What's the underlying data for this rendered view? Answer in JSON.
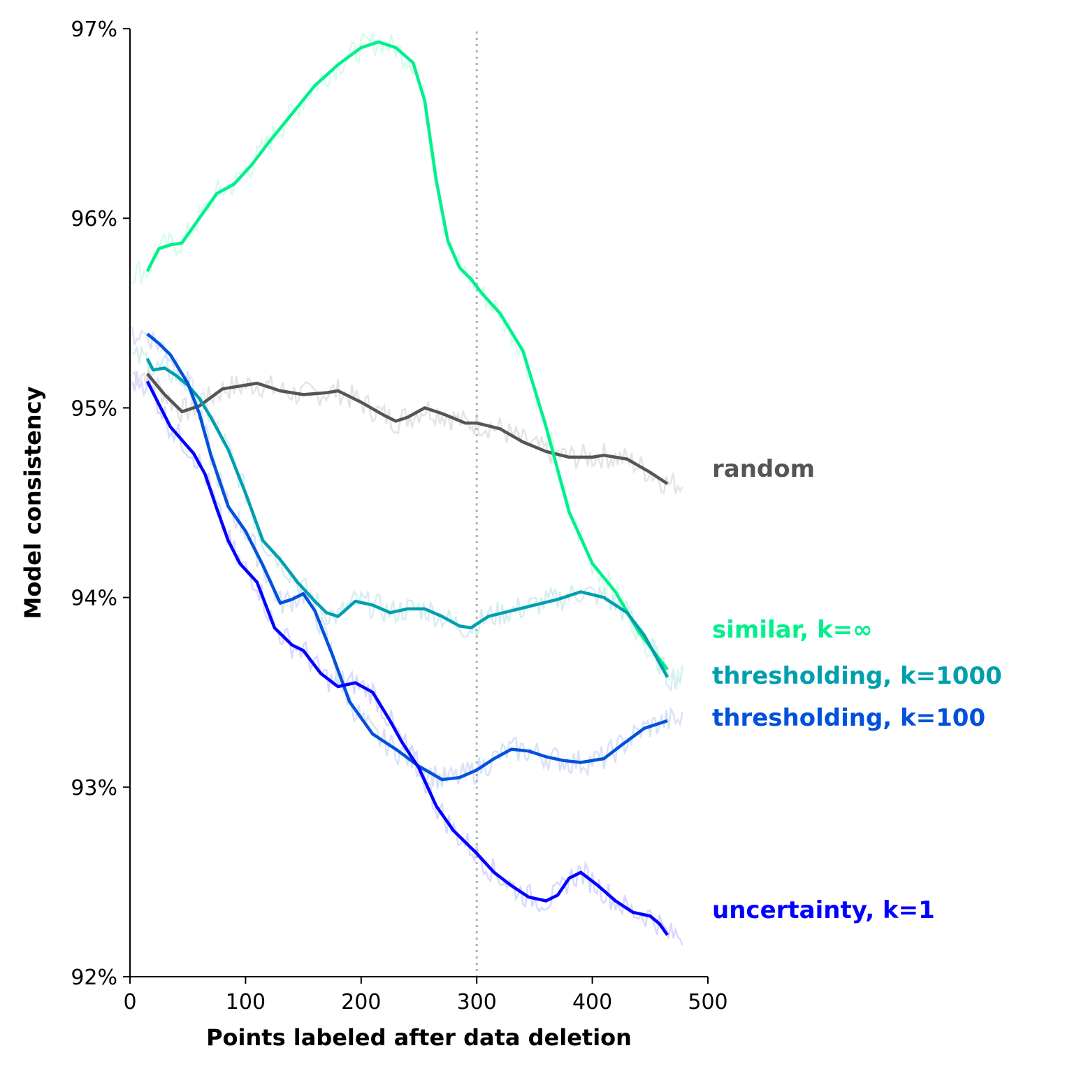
{
  "chart_data": {
    "type": "line",
    "title": "",
    "xlabel": "Points labeled after data deletion",
    "ylabel": "Model consistency",
    "xlim": [
      0,
      500
    ],
    "ylim": [
      92,
      97
    ],
    "x_ticks": [
      0,
      100,
      200,
      300,
      400,
      500
    ],
    "x_tick_labels": [
      "0",
      "100",
      "200",
      "300",
      "400",
      "500"
    ],
    "y_ticks": [
      92,
      93,
      94,
      95,
      96,
      97
    ],
    "y_tick_labels": [
      "92%",
      "93%",
      "94%",
      "95%",
      "96%",
      "97%"
    ],
    "vertical_reference_line": {
      "x": 300,
      "style": "dotted",
      "color": "#b0b0b0"
    },
    "grid": false,
    "legend": "direct labels at right end of lines",
    "series": [
      {
        "name": "random",
        "color": "#555555",
        "raw_color": "#e4e4e4",
        "x": [
          15,
          30,
          45,
          60,
          80,
          100,
          110,
          130,
          150,
          170,
          180,
          200,
          220,
          230,
          240,
          255,
          270,
          290,
          300,
          320,
          340,
          360,
          380,
          400,
          410,
          430,
          450,
          465
        ],
        "values": [
          95.18,
          95.07,
          94.98,
          95.01,
          95.1,
          95.12,
          95.13,
          95.09,
          95.07,
          95.08,
          95.09,
          95.03,
          94.96,
          94.93,
          94.95,
          95.0,
          94.97,
          94.92,
          94.92,
          94.89,
          94.82,
          94.77,
          94.74,
          94.74,
          94.75,
          94.73,
          94.66,
          94.6
        ]
      },
      {
        "name": "similar, k=∞",
        "color": "#00f08c",
        "raw_color": "#d8fbec",
        "x": [
          15,
          25,
          35,
          45,
          60,
          75,
          90,
          105,
          120,
          140,
          160,
          180,
          200,
          215,
          230,
          245,
          255,
          265,
          275,
          285,
          295,
          305,
          320,
          340,
          360,
          380,
          400,
          420,
          440,
          455,
          465
        ],
        "values": [
          95.72,
          95.84,
          95.86,
          95.87,
          96.0,
          96.13,
          96.18,
          96.28,
          96.4,
          96.55,
          96.7,
          96.81,
          96.9,
          96.93,
          96.9,
          96.82,
          96.62,
          96.2,
          95.88,
          95.74,
          95.68,
          95.6,
          95.5,
          95.3,
          94.9,
          94.45,
          94.18,
          94.03,
          93.82,
          93.7,
          93.62
        ]
      },
      {
        "name": "thresholding, k=1000",
        "color": "#009fae",
        "raw_color": "#d7eef0",
        "x": [
          15,
          20,
          30,
          40,
          50,
          60,
          70,
          85,
          100,
          115,
          130,
          145,
          160,
          170,
          180,
          195,
          210,
          225,
          240,
          255,
          270,
          285,
          295,
          310,
          330,
          350,
          370,
          390,
          410,
          430,
          445,
          465
        ],
        "values": [
          95.26,
          95.2,
          95.21,
          95.17,
          95.12,
          95.05,
          94.95,
          94.78,
          94.55,
          94.3,
          94.2,
          94.08,
          93.98,
          93.92,
          93.9,
          93.98,
          93.96,
          93.92,
          93.94,
          93.94,
          93.9,
          93.85,
          93.84,
          93.9,
          93.93,
          93.96,
          93.99,
          94.03,
          94.0,
          93.92,
          93.8,
          93.58
        ]
      },
      {
        "name": "thresholding, k=100",
        "color": "#0051db",
        "raw_color": "#dae2f8",
        "x": [
          15,
          25,
          35,
          50,
          60,
          70,
          85,
          100,
          115,
          130,
          140,
          150,
          160,
          175,
          190,
          210,
          230,
          250,
          270,
          285,
          300,
          315,
          330,
          345,
          360,
          375,
          390,
          410,
          425,
          445,
          465
        ],
        "values": [
          95.39,
          95.34,
          95.28,
          95.13,
          94.97,
          94.75,
          94.48,
          94.35,
          94.17,
          93.97,
          93.99,
          94.02,
          93.93,
          93.7,
          93.45,
          93.28,
          93.2,
          93.11,
          93.04,
          93.05,
          93.09,
          93.15,
          93.2,
          93.19,
          93.16,
          93.14,
          93.13,
          93.15,
          93.22,
          93.31,
          93.35
        ]
      },
      {
        "name": "uncertainty, k=1",
        "color": "#0000ff",
        "raw_color": "#d9d9ff",
        "x": [
          15,
          25,
          35,
          45,
          55,
          65,
          75,
          85,
          95,
          110,
          125,
          140,
          150,
          165,
          180,
          195,
          210,
          225,
          235,
          250,
          265,
          280,
          300,
          315,
          330,
          345,
          360,
          370,
          380,
          390,
          405,
          420,
          435,
          450,
          458,
          465
        ],
        "values": [
          95.14,
          95.02,
          94.9,
          94.83,
          94.76,
          94.65,
          94.47,
          94.3,
          94.18,
          94.08,
          93.84,
          93.75,
          93.72,
          93.6,
          93.53,
          93.55,
          93.5,
          93.35,
          93.24,
          93.1,
          92.9,
          92.77,
          92.65,
          92.55,
          92.48,
          92.42,
          92.4,
          92.43,
          92.52,
          92.55,
          92.48,
          92.4,
          92.34,
          92.32,
          92.28,
          92.22
        ]
      }
    ]
  }
}
